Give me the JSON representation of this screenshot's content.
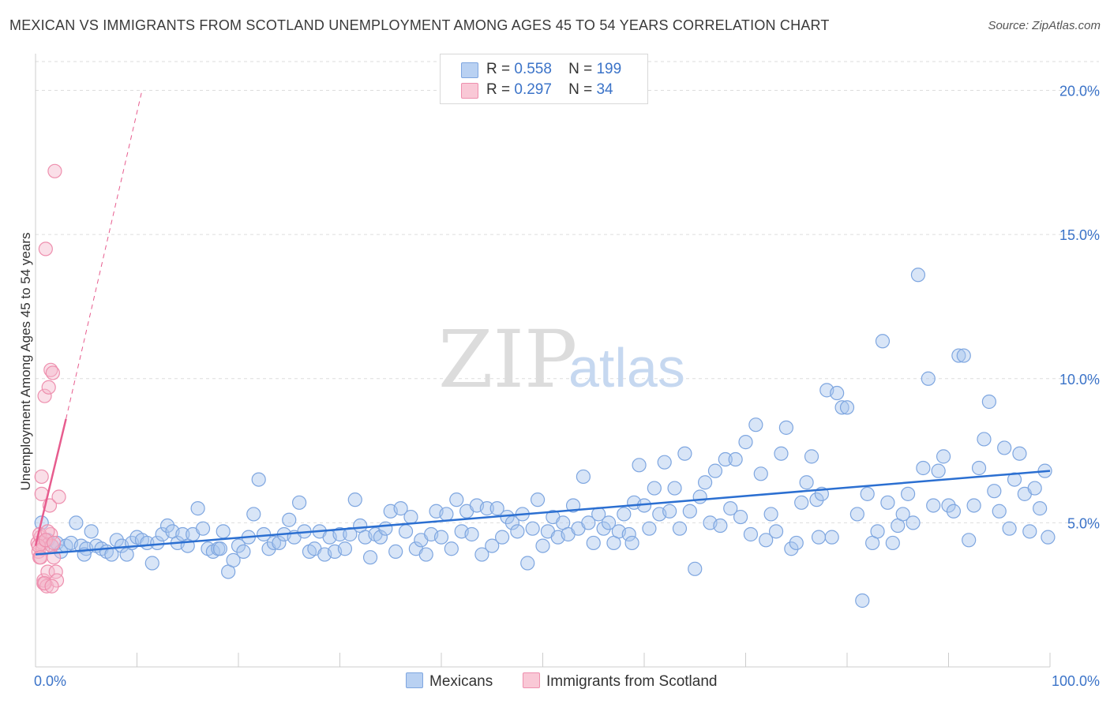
{
  "title": "MEXICAN VS IMMIGRANTS FROM SCOTLAND UNEMPLOYMENT AMONG AGES 45 TO 54 YEARS CORRELATION CHART",
  "source": "Source: ZipAtlas.com",
  "watermark": {
    "zip": "ZIP",
    "atlas": "atlas"
  },
  "legend": {
    "mexicans": {
      "r_label": "R =",
      "r_value": "0.558",
      "n_label": "N =",
      "n_value": "199"
    },
    "scotland": {
      "r_label": "R =",
      "r_value": "0.297",
      "n_label": "N =",
      "n_value": "34"
    }
  },
  "colors": {
    "blue_fill": "#a9c5ee",
    "blue_stroke": "#7ea6e0",
    "blue_line": "#2b6fd1",
    "pink_fill": "#f5b8cb",
    "pink_stroke": "#ee8fae",
    "pink_line": "#e75c8e",
    "axis_text": "#3b73c8",
    "grid": "#dddddd"
  },
  "chart_data": {
    "type": "scatter",
    "title": "MEXICAN VS IMMIGRANTS FROM SCOTLAND UNEMPLOYMENT AMONG AGES 45 TO 54 YEARS CORRELATION CHART",
    "xlabel": "",
    "ylabel": "Unemployment Among Ages 45 to 54 years",
    "xlim": [
      0,
      100
    ],
    "ylim": [
      0,
      21
    ],
    "x_tick_labels": [
      "0.0%",
      "100.0%"
    ],
    "y_ticks": [
      5,
      10,
      15,
      20
    ],
    "y_tick_labels": [
      "5.0%",
      "10.0%",
      "15.0%",
      "20.0%"
    ],
    "legend_position": "top-center",
    "series": [
      {
        "name": "Mexicans",
        "trend": {
          "x": [
            0,
            100
          ],
          "y": [
            3.9,
            6.8
          ]
        },
        "points": [
          [
            0.6,
            5.0
          ],
          [
            1.2,
            4.4
          ],
          [
            1.6,
            4.2
          ],
          [
            2.1,
            4.3
          ],
          [
            2.5,
            4.0
          ],
          [
            3.0,
            4.2
          ],
          [
            3.5,
            4.3
          ],
          [
            4.0,
            5.0
          ],
          [
            4.5,
            4.2
          ],
          [
            5.0,
            4.1
          ],
          [
            5.5,
            4.7
          ],
          [
            6.0,
            4.2
          ],
          [
            6.5,
            4.1
          ],
          [
            7.0,
            4.0
          ],
          [
            7.5,
            3.9
          ],
          [
            8.0,
            4.4
          ],
          [
            8.5,
            4.2
          ],
          [
            9.0,
            3.9
          ],
          [
            9.5,
            4.3
          ],
          [
            10.0,
            4.5
          ],
          [
            10.5,
            4.4
          ],
          [
            11.0,
            4.3
          ],
          [
            11.5,
            3.6
          ],
          [
            12.0,
            4.3
          ],
          [
            12.5,
            4.6
          ],
          [
            13.0,
            4.9
          ],
          [
            13.5,
            4.7
          ],
          [
            14.0,
            4.3
          ],
          [
            14.5,
            4.6
          ],
          [
            15.0,
            4.2
          ],
          [
            15.5,
            4.6
          ],
          [
            16.0,
            5.5
          ],
          [
            16.5,
            4.8
          ],
          [
            17.0,
            4.1
          ],
          [
            17.5,
            4.0
          ],
          [
            18.0,
            4.1
          ],
          [
            18.5,
            4.7
          ],
          [
            19.0,
            3.3
          ],
          [
            19.5,
            3.7
          ],
          [
            20.0,
            4.2
          ],
          [
            20.5,
            4.0
          ],
          [
            21.0,
            4.5
          ],
          [
            21.5,
            5.3
          ],
          [
            22.0,
            6.5
          ],
          [
            22.5,
            4.6
          ],
          [
            23.0,
            4.1
          ],
          [
            23.5,
            4.3
          ],
          [
            24.0,
            4.3
          ],
          [
            24.5,
            4.6
          ],
          [
            25.0,
            5.1
          ],
          [
            25.5,
            4.5
          ],
          [
            26.0,
            5.7
          ],
          [
            26.5,
            4.7
          ],
          [
            27.0,
            4.0
          ],
          [
            27.5,
            4.1
          ],
          [
            28.0,
            4.7
          ],
          [
            28.5,
            3.9
          ],
          [
            29.0,
            4.5
          ],
          [
            29.5,
            4.0
          ],
          [
            30.0,
            4.6
          ],
          [
            30.5,
            4.1
          ],
          [
            31.0,
            4.6
          ],
          [
            31.5,
            5.8
          ],
          [
            32.0,
            4.9
          ],
          [
            32.5,
            4.5
          ],
          [
            33.0,
            3.8
          ],
          [
            33.5,
            4.6
          ],
          [
            34.0,
            4.5
          ],
          [
            34.5,
            4.8
          ],
          [
            35.0,
            5.4
          ],
          [
            35.5,
            4.0
          ],
          [
            36.0,
            5.5
          ],
          [
            36.5,
            4.7
          ],
          [
            37.0,
            5.2
          ],
          [
            37.5,
            4.1
          ],
          [
            38.0,
            4.4
          ],
          [
            38.5,
            3.9
          ],
          [
            39.0,
            4.6
          ],
          [
            39.5,
            5.4
          ],
          [
            40.0,
            4.5
          ],
          [
            40.5,
            5.3
          ],
          [
            41.0,
            4.1
          ],
          [
            41.5,
            5.8
          ],
          [
            42.0,
            4.7
          ],
          [
            42.5,
            5.4
          ],
          [
            43.0,
            4.6
          ],
          [
            43.5,
            5.6
          ],
          [
            44.0,
            3.9
          ],
          [
            44.5,
            5.5
          ],
          [
            45.0,
            4.2
          ],
          [
            45.5,
            5.5
          ],
          [
            46.0,
            4.5
          ],
          [
            46.5,
            5.2
          ],
          [
            47.0,
            5.0
          ],
          [
            47.5,
            4.7
          ],
          [
            48.0,
            5.3
          ],
          [
            48.5,
            3.6
          ],
          [
            49.0,
            4.8
          ],
          [
            49.5,
            5.8
          ],
          [
            50.0,
            4.2
          ],
          [
            50.5,
            4.7
          ],
          [
            51.0,
            5.2
          ],
          [
            51.5,
            4.5
          ],
          [
            52.0,
            5.0
          ],
          [
            52.5,
            4.6
          ],
          [
            53.0,
            5.6
          ],
          [
            53.5,
            4.8
          ],
          [
            54.0,
            6.6
          ],
          [
            54.5,
            5.0
          ],
          [
            55.0,
            4.3
          ],
          [
            55.5,
            5.3
          ],
          [
            56.0,
            4.8
          ],
          [
            56.5,
            5.0
          ],
          [
            57.0,
            4.3
          ],
          [
            57.5,
            4.7
          ],
          [
            58.0,
            5.3
          ],
          [
            58.5,
            4.6
          ],
          [
            59.0,
            5.7
          ],
          [
            59.5,
            7.0
          ],
          [
            60.0,
            5.6
          ],
          [
            60.5,
            4.8
          ],
          [
            61.0,
            6.2
          ],
          [
            61.5,
            5.3
          ],
          [
            62.0,
            7.1
          ],
          [
            62.5,
            5.4
          ],
          [
            63.0,
            6.2
          ],
          [
            63.5,
            4.8
          ],
          [
            64.0,
            7.4
          ],
          [
            64.5,
            5.4
          ],
          [
            65.0,
            3.4
          ],
          [
            65.5,
            5.9
          ],
          [
            66.0,
            6.4
          ],
          [
            66.5,
            5.0
          ],
          [
            67.0,
            6.8
          ],
          [
            67.5,
            4.9
          ],
          [
            68.0,
            7.2
          ],
          [
            68.5,
            5.5
          ],
          [
            69.0,
            7.2
          ],
          [
            69.5,
            5.2
          ],
          [
            70.0,
            7.8
          ],
          [
            70.5,
            4.6
          ],
          [
            71.0,
            8.4
          ],
          [
            71.5,
            6.7
          ],
          [
            72.0,
            4.4
          ],
          [
            72.5,
            5.3
          ],
          [
            73.0,
            4.7
          ],
          [
            73.5,
            7.4
          ],
          [
            74.0,
            8.3
          ],
          [
            74.5,
            4.1
          ],
          [
            75.0,
            4.3
          ],
          [
            75.5,
            5.7
          ],
          [
            76.0,
            6.4
          ],
          [
            76.5,
            7.3
          ],
          [
            77.0,
            5.8
          ],
          [
            77.5,
            6.0
          ],
          [
            78.0,
            9.6
          ],
          [
            78.5,
            4.5
          ],
          [
            79.0,
            9.5
          ],
          [
            79.5,
            9.0
          ],
          [
            80.0,
            9.0
          ],
          [
            81.0,
            5.3
          ],
          [
            81.5,
            2.3
          ],
          [
            82.0,
            6.0
          ],
          [
            82.5,
            4.3
          ],
          [
            83.0,
            4.7
          ],
          [
            83.5,
            11.3
          ],
          [
            84.0,
            5.7
          ],
          [
            84.5,
            4.3
          ],
          [
            85.0,
            4.9
          ],
          [
            85.5,
            5.3
          ],
          [
            86.0,
            6.0
          ],
          [
            86.5,
            5.0
          ],
          [
            87.0,
            13.6
          ],
          [
            87.5,
            6.9
          ],
          [
            88.0,
            10.0
          ],
          [
            88.5,
            5.6
          ],
          [
            89.0,
            6.8
          ],
          [
            89.5,
            7.3
          ],
          [
            90.0,
            5.6
          ],
          [
            90.5,
            5.4
          ],
          [
            91.0,
            10.8
          ],
          [
            91.5,
            10.8
          ],
          [
            92.0,
            4.4
          ],
          [
            92.5,
            5.6
          ],
          [
            93.0,
            6.9
          ],
          [
            93.5,
            7.9
          ],
          [
            94.0,
            9.2
          ],
          [
            94.5,
            6.1
          ],
          [
            95.0,
            5.4
          ],
          [
            95.5,
            7.6
          ],
          [
            96.0,
            4.8
          ],
          [
            96.5,
            6.5
          ],
          [
            97.0,
            7.4
          ],
          [
            97.5,
            6.0
          ],
          [
            98.0,
            4.7
          ],
          [
            98.5,
            6.2
          ],
          [
            99.0,
            5.5
          ],
          [
            99.5,
            6.8
          ],
          [
            99.8,
            4.5
          ],
          [
            4.8,
            3.9
          ],
          [
            18.2,
            4.1
          ],
          [
            58.8,
            4.3
          ],
          [
            77.2,
            4.5
          ]
        ]
      },
      {
        "name": "Immigrants from Scotland",
        "trend": {
          "x": [
            0,
            3
          ],
          "y": [
            4.2,
            8.6
          ]
        },
        "trend_dashed_extension": {
          "x": [
            3,
            10.5
          ],
          "y": [
            8.6,
            20.0
          ]
        },
        "points": [
          [
            0.2,
            4.3
          ],
          [
            0.3,
            4.0
          ],
          [
            0.4,
            3.8
          ],
          [
            0.5,
            4.5
          ],
          [
            0.6,
            6.6
          ],
          [
            0.6,
            6.0
          ],
          [
            0.7,
            4.3
          ],
          [
            0.7,
            4.1
          ],
          [
            0.8,
            2.9
          ],
          [
            0.8,
            3.0
          ],
          [
            0.9,
            9.4
          ],
          [
            1.0,
            14.5
          ],
          [
            1.0,
            4.4
          ],
          [
            1.1,
            2.8
          ],
          [
            1.2,
            3.3
          ],
          [
            1.3,
            9.7
          ],
          [
            1.4,
            5.6
          ],
          [
            1.5,
            10.3
          ],
          [
            1.5,
            4.6
          ],
          [
            1.6,
            4.2
          ],
          [
            1.7,
            10.2
          ],
          [
            1.8,
            3.8
          ],
          [
            1.9,
            17.2
          ],
          [
            2.0,
            3.3
          ],
          [
            2.1,
            3.0
          ],
          [
            2.3,
            5.9
          ],
          [
            0.4,
            4.6
          ],
          [
            0.9,
            2.9
          ],
          [
            1.2,
            4.7
          ],
          [
            1.6,
            2.8
          ],
          [
            0.3,
            4.2
          ],
          [
            0.5,
            3.8
          ],
          [
            1.0,
            4.4
          ],
          [
            1.8,
            4.3
          ]
        ]
      }
    ]
  },
  "bottom_legend": {
    "mexicans_label": "Mexicans",
    "scotland_label": "Immigrants from Scotland"
  }
}
